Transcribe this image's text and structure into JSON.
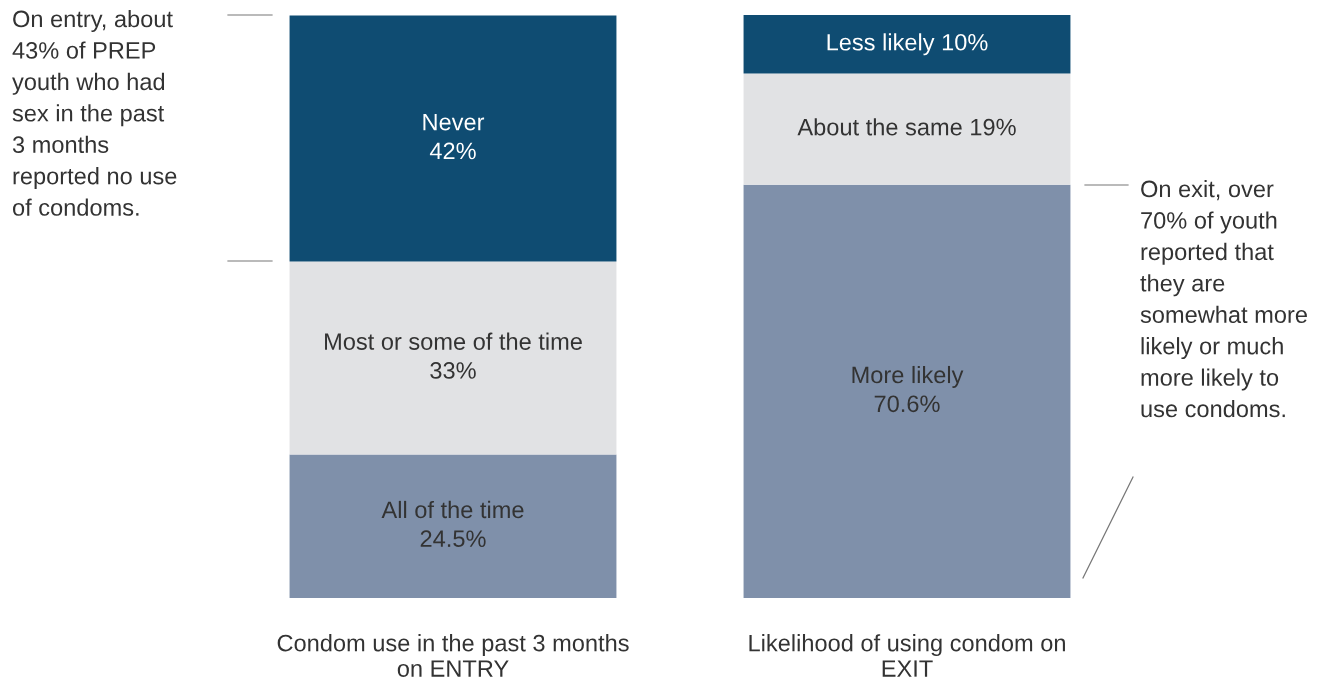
{
  "chart_data": {
    "type": "bar",
    "stacked": true,
    "categories": [
      "Condom use in the past 3 months\non ENTRY",
      "Likelihood of using condom on\nEXIT"
    ],
    "series": [
      {
        "color": "#7f90aa",
        "values": [
          24.5,
          70.6
        ],
        "value_labels": [
          "All of the time\n24.5%",
          "More likely\n70.6%"
        ]
      },
      {
        "color": "#e1e2e4",
        "values": [
          33,
          19
        ],
        "value_labels": [
          "Most or some of the time\n33%",
          "About the same 19%"
        ]
      },
      {
        "color": "#0f4c72",
        "values": [
          42,
          10
        ],
        "value_labels": [
          "Never\n42%",
          "Less likely 10%"
        ]
      }
    ],
    "annotations": [
      "On entry, about\n43% of PREP\nyouth who had\nsex in the past\n3 months\nreported no use\nof condoms.",
      "On exit, over\n70% of youth\nreported that\nthey are\nsomewhat more\nlikely or much\nmore likely to\nuse condoms."
    ],
    "grid": false
  }
}
